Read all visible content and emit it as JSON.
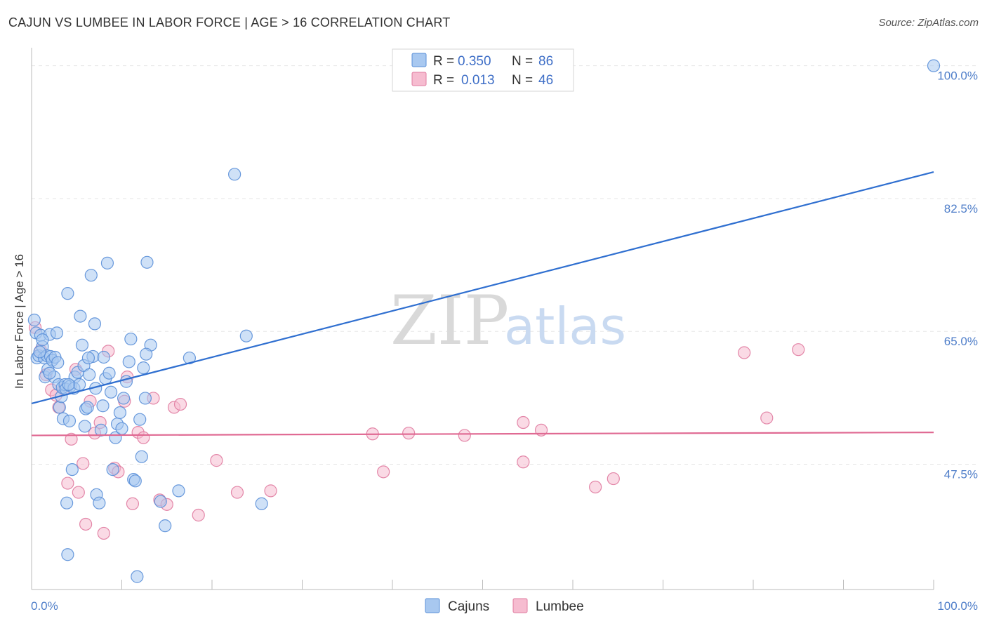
{
  "title": "CAJUN VS LUMBEE IN LABOR FORCE | AGE > 16 CORRELATION CHART",
  "source": "Source: ZipAtlas.com",
  "watermark": {
    "zip": "ZIP",
    "atlas": "atlas"
  },
  "legend": {
    "r_label": "R =",
    "n_label": "N =",
    "rows": [
      {
        "r": "0.350",
        "n": "86"
      },
      {
        "r": "0.013",
        "n": "46"
      }
    ]
  },
  "colors": {
    "cajun_fill": "#a8c8f0",
    "cajun_stroke": "#5a8fd8",
    "cajun_line": "#2f6fd0",
    "lumbee_fill": "#f6bcd0",
    "lumbee_stroke": "#e07ba0",
    "lumbee_line": "#e06a93",
    "grid": "#e6e6e6",
    "tick_text": "#4f7ec9"
  },
  "chart_data": {
    "type": "scatter",
    "ylabel": "In Labor Force | Age > 16",
    "xlim": [
      0,
      100
    ],
    "ylim": [
      31,
      102
    ],
    "x_tick_labels": [
      "0.0%",
      "100.0%"
    ],
    "y_ticks": [
      47.5,
      65.0,
      82.5,
      100.0
    ],
    "y_tick_labels": [
      "47.5%",
      "65.0%",
      "82.5%",
      "100.0%"
    ],
    "grid": true,
    "legend_position": "bottom",
    "series": [
      {
        "name": "Cajuns",
        "regression": {
          "x": [
            0,
            100
          ],
          "y": [
            55.5,
            86.0
          ]
        },
        "points": [
          [
            0.3,
            66.5
          ],
          [
            0.5,
            64.8
          ],
          [
            0.6,
            61.5
          ],
          [
            0.8,
            61.8
          ],
          [
            1.0,
            64.5
          ],
          [
            1.2,
            63.0
          ],
          [
            1.4,
            61.5
          ],
          [
            1.5,
            59.0
          ],
          [
            1.7,
            61.8
          ],
          [
            1.8,
            60.0
          ],
          [
            2.0,
            64.6
          ],
          [
            2.1,
            61.7
          ],
          [
            2.3,
            61.2
          ],
          [
            2.5,
            59.0
          ],
          [
            2.6,
            61.6
          ],
          [
            2.8,
            64.8
          ],
          [
            3.0,
            58.0
          ],
          [
            3.1,
            55.0
          ],
          [
            3.3,
            56.4
          ],
          [
            3.4,
            57.6
          ],
          [
            3.5,
            53.5
          ],
          [
            3.7,
            58.0
          ],
          [
            3.8,
            57.4
          ],
          [
            4.0,
            70.0
          ],
          [
            4.2,
            53.2
          ],
          [
            4.3,
            57.8
          ],
          [
            4.5,
            46.8
          ],
          [
            4.7,
            57.5
          ],
          [
            4.8,
            59.0
          ],
          [
            5.1,
            59.6
          ],
          [
            5.3,
            58.0
          ],
          [
            5.4,
            67.0
          ],
          [
            5.6,
            63.2
          ],
          [
            5.8,
            60.5
          ],
          [
            6.0,
            54.8
          ],
          [
            6.2,
            55.0
          ],
          [
            6.4,
            59.3
          ],
          [
            6.6,
            72.4
          ],
          [
            6.8,
            61.7
          ],
          [
            7.0,
            66.0
          ],
          [
            7.2,
            43.5
          ],
          [
            7.5,
            42.4
          ],
          [
            7.7,
            52.0
          ],
          [
            7.9,
            55.2
          ],
          [
            8.2,
            58.8
          ],
          [
            8.4,
            74.0
          ],
          [
            8.6,
            59.5
          ],
          [
            8.8,
            57.0
          ],
          [
            9.0,
            46.8
          ],
          [
            9.3,
            51.0
          ],
          [
            9.5,
            52.8
          ],
          [
            9.8,
            54.3
          ],
          [
            10.2,
            56.2
          ],
          [
            10.5,
            58.4
          ],
          [
            10.8,
            61.0
          ],
          [
            11.0,
            64.0
          ],
          [
            11.3,
            45.5
          ],
          [
            11.5,
            45.3
          ],
          [
            11.7,
            32.7
          ],
          [
            12.0,
            53.4
          ],
          [
            12.2,
            48.5
          ],
          [
            12.4,
            60.2
          ],
          [
            12.6,
            56.2
          ],
          [
            12.8,
            74.1
          ],
          [
            13.2,
            63.2
          ],
          [
            14.3,
            42.6
          ],
          [
            14.8,
            39.4
          ],
          [
            16.3,
            44.0
          ],
          [
            17.5,
            61.5
          ],
          [
            22.5,
            85.7
          ],
          [
            23.8,
            64.4
          ],
          [
            25.5,
            42.3
          ],
          [
            1.2,
            63.9
          ],
          [
            2.9,
            60.9
          ],
          [
            3.9,
            42.4
          ],
          [
            4.1,
            58.0
          ],
          [
            5.9,
            52.5
          ],
          [
            6.3,
            61.5
          ],
          [
            7.1,
            57.5
          ],
          [
            8.0,
            61.6
          ],
          [
            10.0,
            52.2
          ],
          [
            4.0,
            35.6
          ],
          [
            2.0,
            59.5
          ],
          [
            0.9,
            62.3
          ],
          [
            12.7,
            62.0
          ],
          [
            100.0,
            100.0
          ]
        ]
      },
      {
        "name": "Lumbee",
        "regression": {
          "x": [
            0,
            100
          ],
          "y": [
            51.3,
            51.7
          ]
        },
        "points": [
          [
            0.4,
            65.5
          ],
          [
            1.0,
            62.5
          ],
          [
            1.6,
            59.3
          ],
          [
            2.2,
            57.3
          ],
          [
            2.7,
            56.6
          ],
          [
            3.0,
            55.0
          ],
          [
            3.6,
            57.4
          ],
          [
            4.0,
            45.0
          ],
          [
            4.4,
            50.8
          ],
          [
            4.9,
            60.0
          ],
          [
            5.2,
            43.8
          ],
          [
            5.7,
            47.6
          ],
          [
            6.0,
            39.6
          ],
          [
            6.5,
            55.8
          ],
          [
            7.0,
            51.6
          ],
          [
            7.6,
            53.0
          ],
          [
            8.0,
            38.4
          ],
          [
            8.5,
            62.4
          ],
          [
            9.2,
            47.0
          ],
          [
            9.6,
            46.5
          ],
          [
            10.3,
            55.8
          ],
          [
            10.6,
            59.0
          ],
          [
            11.2,
            42.3
          ],
          [
            11.8,
            51.7
          ],
          [
            12.4,
            51.0
          ],
          [
            13.5,
            56.2
          ],
          [
            14.2,
            42.8
          ],
          [
            15.0,
            42.2
          ],
          [
            15.8,
            55.0
          ],
          [
            16.5,
            55.4
          ],
          [
            18.5,
            40.8
          ],
          [
            20.5,
            48.0
          ],
          [
            22.8,
            43.8
          ],
          [
            26.5,
            44.0
          ],
          [
            37.8,
            51.5
          ],
          [
            39.0,
            46.5
          ],
          [
            41.8,
            51.6
          ],
          [
            48.0,
            51.3
          ],
          [
            54.5,
            53.0
          ],
          [
            54.5,
            47.8
          ],
          [
            56.5,
            52.0
          ],
          [
            62.5,
            44.5
          ],
          [
            64.5,
            45.6
          ],
          [
            79.0,
            62.2
          ],
          [
            81.5,
            53.6
          ],
          [
            85.0,
            62.6
          ]
        ]
      }
    ]
  },
  "bottom_legend": [
    "Cajuns",
    "Lumbee"
  ]
}
